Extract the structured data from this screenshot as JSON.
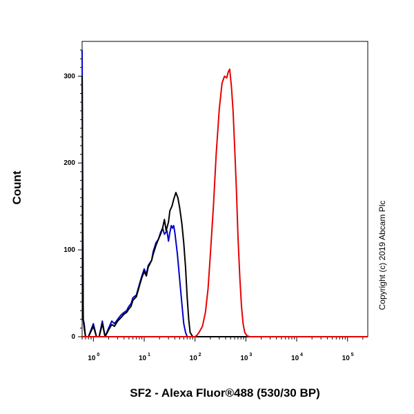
{
  "chart_data": {
    "type": "line",
    "xlabel": "SF2 - Alexa Fluor®488 (530/30 BP)",
    "ylabel": "Count",
    "x_scale": "log",
    "xlim": [
      0.6,
      250000
    ],
    "ylim": [
      0,
      340
    ],
    "x_ticks": [
      {
        "base": "10",
        "exp": "0",
        "value": 1
      },
      {
        "base": "10",
        "exp": "1",
        "value": 10
      },
      {
        "base": "10",
        "exp": "2",
        "value": 100
      },
      {
        "base": "10",
        "exp": "3",
        "value": 1000
      },
      {
        "base": "10",
        "exp": "4",
        "value": 10000
      },
      {
        "base": "10",
        "exp": "5",
        "value": 100000
      }
    ],
    "y_ticks": [
      "0",
      "100",
      "200",
      "300"
    ],
    "y_tick_values": [
      0,
      100,
      200,
      300
    ],
    "copyright": "Copyright (c) 2019 Abcam Plc",
    "series": [
      {
        "color": "#0000cc",
        "points": [
          [
            0.6,
            330
          ],
          [
            0.63,
            20
          ],
          [
            0.66,
            15
          ],
          [
            0.7,
            0
          ],
          [
            0.8,
            0
          ],
          [
            1.0,
            15
          ],
          [
            1.15,
            0
          ],
          [
            1.3,
            0
          ],
          [
            1.5,
            18
          ],
          [
            1.7,
            0
          ],
          [
            2,
            10
          ],
          [
            2.3,
            18
          ],
          [
            2.6,
            15
          ],
          [
            3,
            20
          ],
          [
            3.5,
            25
          ],
          [
            4,
            28
          ],
          [
            4.5,
            30
          ],
          [
            5,
            35
          ],
          [
            5.5,
            38
          ],
          [
            6,
            45
          ],
          [
            7,
            48
          ],
          [
            8,
            60
          ],
          [
            9,
            70
          ],
          [
            10,
            78
          ],
          [
            11,
            72
          ],
          [
            12,
            82
          ],
          [
            14,
            88
          ],
          [
            15,
            98
          ],
          [
            17,
            108
          ],
          [
            19,
            112
          ],
          [
            21,
            120
          ],
          [
            23,
            125
          ],
          [
            25,
            118
          ],
          [
            28,
            122
          ],
          [
            30,
            110
          ],
          [
            32,
            120
          ],
          [
            34,
            128
          ],
          [
            36,
            125
          ],
          [
            38,
            128
          ],
          [
            40,
            120
          ],
          [
            45,
            95
          ],
          [
            50,
            65
          ],
          [
            55,
            38
          ],
          [
            60,
            15
          ],
          [
            65,
            5
          ],
          [
            70,
            0
          ],
          [
            100,
            0
          ],
          [
            100000,
            0
          ],
          [
            250000,
            0
          ]
        ]
      },
      {
        "color": "#000000",
        "points": [
          [
            0.6,
            300
          ],
          [
            0.63,
            20
          ],
          [
            0.66,
            10
          ],
          [
            0.7,
            0
          ],
          [
            0.8,
            0
          ],
          [
            1.0,
            12
          ],
          [
            1.15,
            0
          ],
          [
            1.3,
            0
          ],
          [
            1.5,
            15
          ],
          [
            1.7,
            0
          ],
          [
            2,
            8
          ],
          [
            2.3,
            14
          ],
          [
            2.6,
            12
          ],
          [
            3,
            18
          ],
          [
            3.5,
            22
          ],
          [
            4,
            26
          ],
          [
            4.5,
            28
          ],
          [
            5,
            32
          ],
          [
            5.5,
            35
          ],
          [
            6,
            42
          ],
          [
            7,
            46
          ],
          [
            8,
            58
          ],
          [
            9,
            68
          ],
          [
            10,
            75
          ],
          [
            11,
            70
          ],
          [
            12,
            80
          ],
          [
            14,
            88
          ],
          [
            15,
            95
          ],
          [
            17,
            105
          ],
          [
            19,
            112
          ],
          [
            21,
            118
          ],
          [
            23,
            125
          ],
          [
            25,
            135
          ],
          [
            27,
            122
          ],
          [
            30,
            132
          ],
          [
            32,
            145
          ],
          [
            35,
            150
          ],
          [
            38,
            158
          ],
          [
            42,
            166
          ],
          [
            46,
            160
          ],
          [
            50,
            148
          ],
          [
            55,
            130
          ],
          [
            60,
            108
          ],
          [
            65,
            80
          ],
          [
            70,
            45
          ],
          [
            75,
            20
          ],
          [
            80,
            5
          ],
          [
            90,
            0
          ],
          [
            100000,
            0
          ],
          [
            250000,
            0
          ]
        ]
      },
      {
        "color": "#e60000",
        "points": [
          [
            0.6,
            0
          ],
          [
            100,
            0
          ],
          [
            110,
            2
          ],
          [
            120,
            5
          ],
          [
            140,
            12
          ],
          [
            160,
            28
          ],
          [
            180,
            55
          ],
          [
            200,
            95
          ],
          [
            230,
            150
          ],
          [
            260,
            210
          ],
          [
            300,
            262
          ],
          [
            340,
            292
          ],
          [
            380,
            300
          ],
          [
            420,
            298
          ],
          [
            450,
            305
          ],
          [
            480,
            308
          ],
          [
            520,
            288
          ],
          [
            560,
            260
          ],
          [
            600,
            220
          ],
          [
            650,
            170
          ],
          [
            700,
            115
          ],
          [
            760,
            68
          ],
          [
            820,
            35
          ],
          [
            880,
            15
          ],
          [
            950,
            5
          ],
          [
            1050,
            1
          ],
          [
            1200,
            0
          ],
          [
            100000,
            0
          ],
          [
            250000,
            0
          ]
        ]
      }
    ]
  }
}
